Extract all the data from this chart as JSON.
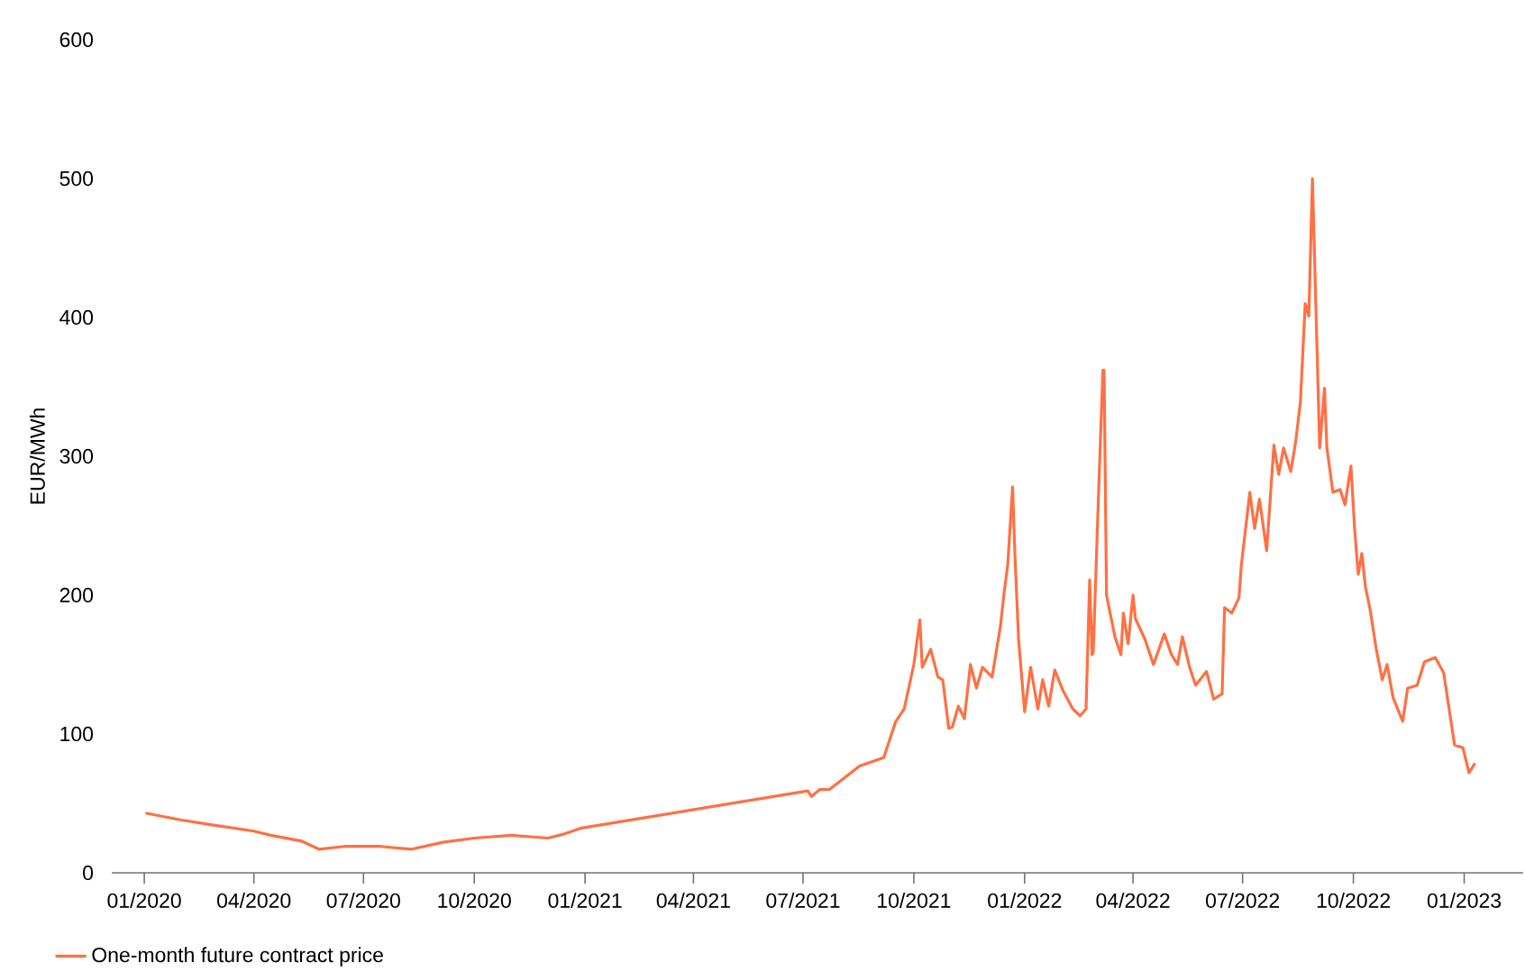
{
  "chart_data": {
    "type": "line",
    "ylabel": "EUR/MWh",
    "x": [
      "2020-01-02",
      "2020-02-01",
      "2020-03-01",
      "2020-04-01",
      "2020-04-15",
      "2020-05-10",
      "2020-05-25",
      "2020-06-15",
      "2020-07-15",
      "2020-08-10",
      "2020-09-05",
      "2020-10-01",
      "2020-11-01",
      "2020-12-01",
      "2020-12-15",
      "2020-12-28",
      "2021-07-05",
      "2021-07-08",
      "2021-07-15",
      "2021-07-23",
      "2021-08-17",
      "2021-09-06",
      "2021-09-16",
      "2021-09-23",
      "2021-10-01",
      "2021-10-06",
      "2021-10-08",
      "2021-10-15",
      "2021-10-21",
      "2021-10-25",
      "2021-10-30",
      "2021-11-02",
      "2021-11-07",
      "2021-11-12",
      "2021-11-17",
      "2021-11-22",
      "2021-11-27",
      "2021-12-05",
      "2021-12-12",
      "2021-12-15",
      "2021-12-18",
      "2021-12-22",
      "2021-12-24",
      "2021-12-27",
      "2022-01-01",
      "2022-01-06",
      "2022-01-12",
      "2022-01-16",
      "2022-01-21",
      "2022-01-26",
      "2022-02-02",
      "2022-02-10",
      "2022-02-16",
      "2022-02-21",
      "2022-02-24",
      "2022-02-26",
      "2022-02-27",
      "2022-03-03",
      "2022-03-07",
      "2022-03-08",
      "2022-03-10",
      "2022-03-17",
      "2022-03-22",
      "2022-03-24",
      "2022-03-28",
      "2022-04-01",
      "2022-04-03",
      "2022-04-11",
      "2022-04-18",
      "2022-04-27",
      "2022-05-03",
      "2022-05-08",
      "2022-05-12",
      "2022-05-18",
      "2022-05-23",
      "2022-06-01",
      "2022-06-07",
      "2022-06-14",
      "2022-06-16",
      "2022-06-22",
      "2022-06-28",
      "2022-06-30",
      "2022-07-07",
      "2022-07-11",
      "2022-07-15",
      "2022-07-21",
      "2022-07-27",
      "2022-07-31",
      "2022-08-04",
      "2022-08-10",
      "2022-08-14",
      "2022-08-18",
      "2022-08-22",
      "2022-08-25",
      "2022-08-28",
      "2022-09-03",
      "2022-09-07",
      "2022-09-09",
      "2022-09-14",
      "2022-09-20",
      "2022-09-24",
      "2022-09-29",
      "2022-10-02",
      "2022-10-05",
      "2022-10-08",
      "2022-10-11",
      "2022-10-15",
      "2022-10-20",
      "2022-10-25",
      "2022-10-29",
      "2022-11-03",
      "2022-11-11",
      "2022-11-15",
      "2022-11-23",
      "2022-11-29",
      "2022-12-08",
      "2022-12-15",
      "2022-12-24",
      "2022-12-31",
      "2023-01-05",
      "2023-01-10"
    ],
    "series": [
      {
        "name": "One-month future contract price",
        "color": "#ff7043",
        "values": [
          43,
          38,
          34,
          30,
          27,
          23,
          17,
          19,
          19,
          17,
          22,
          25,
          27,
          25,
          28,
          32,
          59,
          55,
          60,
          60,
          77,
          83,
          109,
          118,
          150,
          182,
          148,
          161,
          141,
          139,
          104,
          105,
          120,
          111,
          150,
          133,
          148,
          141,
          178,
          202,
          222,
          278,
          228,
          168,
          116,
          148,
          118,
          139,
          120,
          146,
          131,
          118,
          113,
          118,
          211,
          157,
          159,
          263,
          362,
          362,
          200,
          170,
          157,
          187,
          165,
          200,
          183,
          168,
          150,
          172,
          157,
          150,
          170,
          148,
          135,
          145,
          125,
          129,
          191,
          187,
          198,
          222,
          274,
          248,
          269,
          232,
          308,
          287,
          306,
          289,
          310,
          339,
          410,
          401,
          500,
          306,
          349,
          306,
          274,
          276,
          265,
          293,
          248,
          215,
          230,
          206,
          189,
          161,
          139,
          150,
          126,
          109,
          133,
          135,
          152,
          155,
          144,
          92,
          90,
          72,
          79
        ]
      }
    ],
    "xlim": [
      "2019-12-05",
      "2023-02-19"
    ],
    "xticks": [
      {
        "value": "2020-01",
        "label": "01/2020"
      },
      {
        "value": "2020-04",
        "label": "04/2020"
      },
      {
        "value": "2020-07",
        "label": "07/2020"
      },
      {
        "value": "2020-10",
        "label": "10/2020"
      },
      {
        "value": "2021-01",
        "label": "01/2021"
      },
      {
        "value": "2021-04",
        "label": "04/2021"
      },
      {
        "value": "2021-07",
        "label": "07/2021"
      },
      {
        "value": "2021-10",
        "label": "10/2021"
      },
      {
        "value": "2022-01",
        "label": "01/2022"
      },
      {
        "value": "2022-04",
        "label": "04/2022"
      },
      {
        "value": "2022-07",
        "label": "07/2022"
      },
      {
        "value": "2022-10",
        "label": "10/2022"
      },
      {
        "value": "2023-01",
        "label": "01/2023"
      }
    ],
    "ylim": [
      0,
      600
    ],
    "yticks": [
      0,
      100,
      200,
      300,
      400,
      500,
      600
    ],
    "legend": "bottom left",
    "marker": "none",
    "line_style": "solid"
  }
}
